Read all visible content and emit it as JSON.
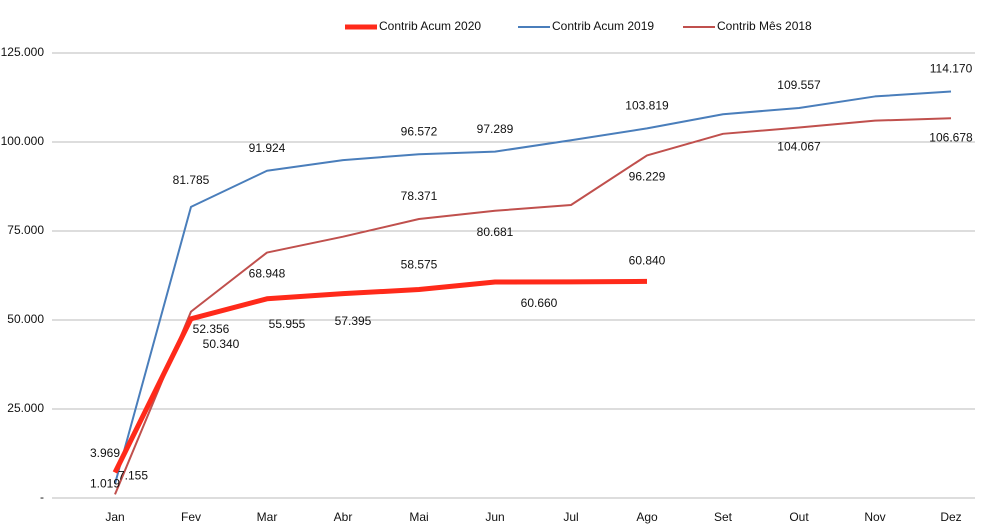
{
  "chart_data": {
    "type": "line",
    "categories": [
      "Jan",
      "Fev",
      "Mar",
      "Abr",
      "Mai",
      "Jun",
      "Jul",
      "Ago",
      "Set",
      "Out",
      "Nov",
      "Dez"
    ],
    "series": [
      {
        "name": "Contrib Acum 2020",
        "color": "#ff2a1a",
        "values": [
          7155,
          50340,
          55955,
          57395,
          58575,
          60660,
          60700,
          60840,
          null,
          null,
          null,
          null
        ],
        "value_labels": [
          "7.155",
          "50.340",
          "55.955",
          "57.395",
          "58.575",
          "60.660",
          null,
          "60.840",
          null,
          null,
          null,
          null
        ]
      },
      {
        "name": "Contrib Acum 2019",
        "color": "#4a7ebb",
        "values": [
          3969,
          81785,
          91924,
          94900,
          96572,
          97289,
          100500,
          103819,
          107800,
          109557,
          112800,
          114170
        ],
        "value_labels": [
          "3.969",
          "81.785",
          "91.924",
          null,
          "96.572",
          "97.289",
          null,
          "103.819",
          null,
          "109.557",
          null,
          "114.170"
        ]
      },
      {
        "name": "Contrib Mês 2018",
        "color": "#c0504d",
        "values": [
          1019,
          52356,
          68948,
          73400,
          78371,
          80681,
          82300,
          96229,
          102300,
          104067,
          106000,
          106678
        ],
        "value_labels": [
          "1.019",
          "52.356",
          "68.948",
          null,
          "78.371",
          "80.681",
          null,
          "96.229",
          null,
          "104.067",
          null,
          "106.678"
        ]
      }
    ],
    "ylim": [
      0,
      125000
    ],
    "yticks": [
      {
        "value": 0,
        "label": "-"
      },
      {
        "value": 25000,
        "label": "25.000"
      },
      {
        "value": 50000,
        "label": "50.000"
      },
      {
        "value": 75000,
        "label": "75.000"
      },
      {
        "value": 100000,
        "label": "100.000"
      },
      {
        "value": 125000,
        "label": "125.000"
      }
    ],
    "grid": true,
    "legend": "top"
  }
}
